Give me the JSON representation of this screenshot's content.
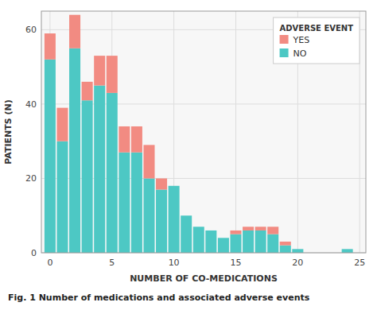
{
  "chart_data": {
    "type": "bar",
    "stacked": true,
    "caption": "Fig. 1  Number of medications and associated adverse events",
    "x_label": "NUMBER OF CO-MEDICATIONS",
    "y_label": "PATIENTS (N)",
    "legend_title": "ADVERSE EVENT",
    "x": [
      0,
      1,
      2,
      3,
      4,
      5,
      6,
      7,
      8,
      9,
      10,
      11,
      12,
      13,
      14,
      15,
      16,
      17,
      18,
      19,
      20,
      21,
      22,
      24
    ],
    "series": [
      {
        "name": "NO",
        "color": "#4DC8C4",
        "values": [
          52,
          30,
          55,
          41,
          45,
          43,
          27,
          27,
          20,
          17,
          18,
          10,
          7,
          6,
          4,
          5,
          6,
          6,
          5,
          2,
          1,
          0,
          0,
          1
        ]
      },
      {
        "name": "YES",
        "color": "#F28B82",
        "values": [
          7,
          9,
          9,
          5,
          8,
          10,
          7,
          7,
          9,
          3,
          0,
          0,
          0,
          0,
          0,
          1,
          1,
          1,
          2,
          1,
          0,
          0,
          0,
          0
        ]
      }
    ],
    "xlim": [
      -0.7,
      25.5
    ],
    "xticks": [
      0,
      5,
      10,
      15,
      20,
      25
    ],
    "ylim": [
      0,
      65
    ],
    "yticks": [
      0,
      20,
      40,
      60
    ],
    "grid": true,
    "legend": "upper right"
  }
}
